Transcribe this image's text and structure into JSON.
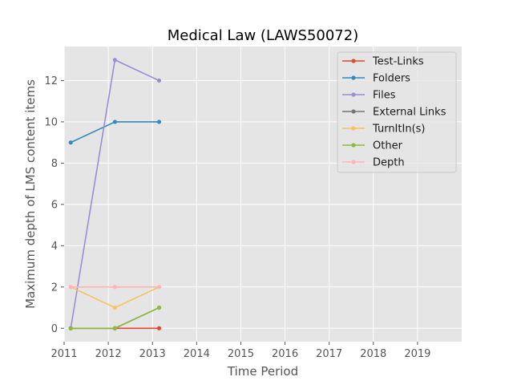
{
  "chart_data": {
    "type": "line",
    "title": "Medical Law (LAWS50072)",
    "xlabel": "Time Period",
    "ylabel": "Maximum depth of LMS content items",
    "xlim": [
      2011,
      2020
    ],
    "ylim": [
      -0.65,
      13.65
    ],
    "xticks": [
      2011,
      2012,
      2013,
      2014,
      2015,
      2016,
      2017,
      2018,
      2019
    ],
    "yticks": [
      0,
      2,
      4,
      6,
      8,
      10,
      12
    ],
    "grid": true,
    "legend_position": "upper-right",
    "x": [
      2011.15,
      2012.15,
      2013.15
    ],
    "series": [
      {
        "name": "Test-Links",
        "color": "#E24A33",
        "values": [
          0,
          0,
          0
        ]
      },
      {
        "name": "Folders",
        "color": "#348ABD",
        "values": [
          9,
          10,
          10
        ]
      },
      {
        "name": "Files",
        "color": "#988ED5",
        "values": [
          0,
          13,
          12
        ]
      },
      {
        "name": "External Links",
        "color": "#777777",
        "values": [
          0,
          0,
          1
        ]
      },
      {
        "name": "TurnItIn(s)",
        "color": "#FBC15E",
        "values": [
          2,
          1,
          2
        ]
      },
      {
        "name": "Other",
        "color": "#8EBA42",
        "values": [
          0,
          0,
          1
        ]
      },
      {
        "name": "Depth",
        "color": "#FFB5B8",
        "values": [
          2,
          2,
          2
        ]
      }
    ]
  }
}
